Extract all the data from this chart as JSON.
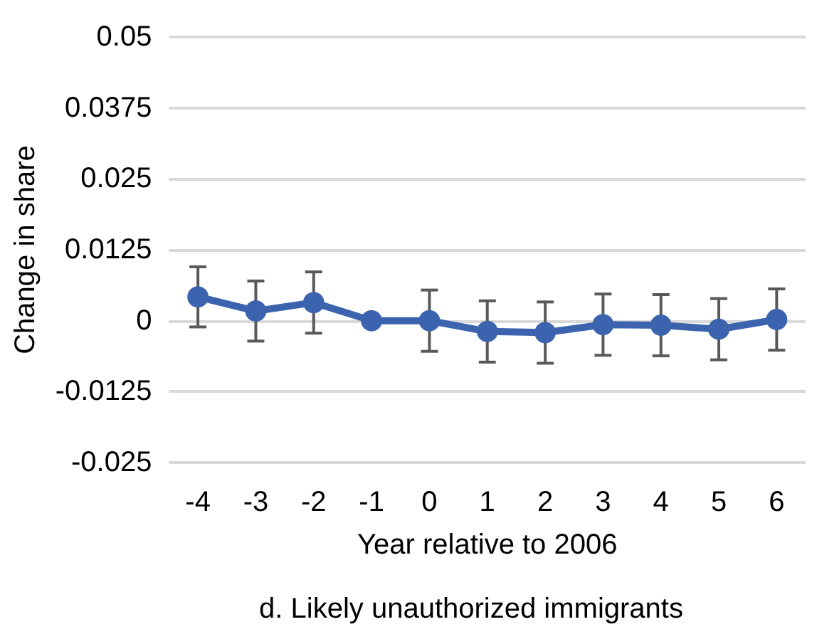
{
  "chart_data": {
    "type": "line",
    "title": "d. Likely unauthorized immigrants",
    "xlabel": "Year relative to 2006",
    "ylabel": "Change in share",
    "categories": [
      "-4",
      "-3",
      "-2",
      "-1",
      "0",
      "1",
      "2",
      "3",
      "4",
      "5",
      "6"
    ],
    "series": [
      {
        "color": "#3c64ae",
        "values": [
          0.0042,
          0.0017,
          0.0032,
          0,
          0,
          -0.0019,
          -0.0021,
          -0.0007,
          -0.0008,
          -0.0015,
          0.0002
        ],
        "errors": [
          0.0053,
          0.0053,
          0.0054,
          null,
          0.0054,
          0.0054,
          0.0054,
          0.0054,
          0.0054,
          0.0054,
          0.0054
        ]
      }
    ],
    "ylim": [
      -0.025,
      0.05
    ],
    "yticks": [
      -0.025,
      -0.0125,
      0,
      0.0125,
      0.025,
      0.0375,
      0.05
    ],
    "grid": "y",
    "marker": "circle",
    "line_style": "solid"
  }
}
